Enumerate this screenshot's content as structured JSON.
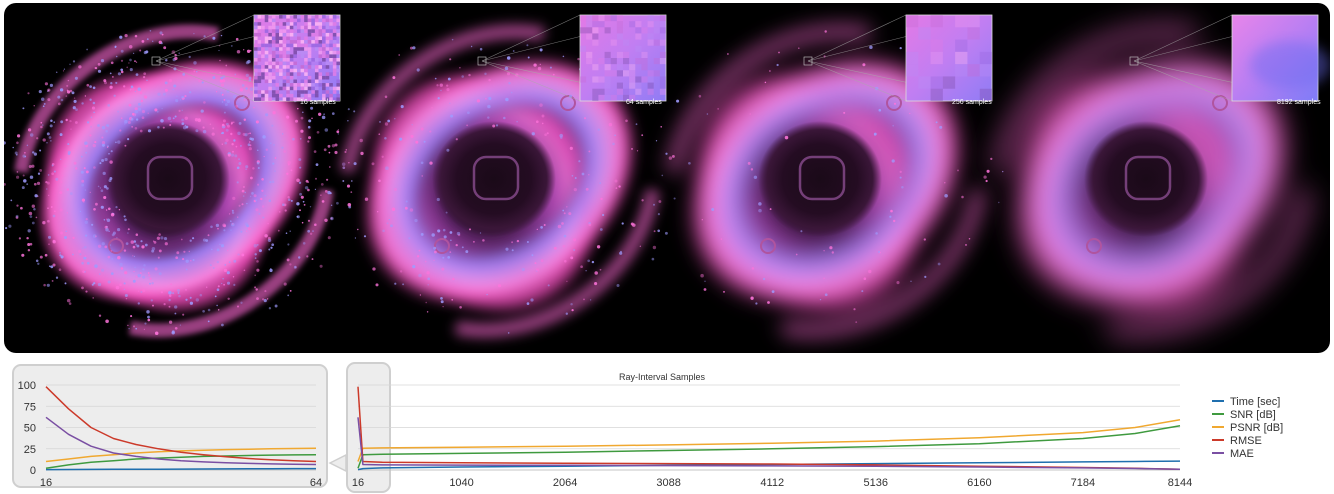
{
  "colors": {
    "time": "#1f6fae",
    "snr": "#3f9a3f",
    "psnr": "#f0a830",
    "rmse": "#cc3a2a",
    "mae": "#7a4fa3",
    "panel_bg": "#000000",
    "nebula_pink": "#ff5ad0",
    "nebula_blue": "#7f7cff"
  },
  "renders": [
    {
      "samples_label": "16 samples",
      "noise": "high"
    },
    {
      "samples_label": "64 samples",
      "noise": "medium"
    },
    {
      "samples_label": "256 samples",
      "noise": "low"
    },
    {
      "samples_label": "8192 samples",
      "noise": "none"
    }
  ],
  "chart_data": [
    {
      "type": "line",
      "title": "",
      "xlabel": "",
      "ylabel": "",
      "xlim": [
        16,
        64
      ],
      "ylim": [
        0,
        100
      ],
      "x_ticks": [
        16,
        64
      ],
      "y_ticks": [
        0,
        25,
        50,
        75,
        100
      ],
      "grid": true,
      "x": [
        16,
        20,
        24,
        28,
        32,
        36,
        40,
        44,
        48,
        52,
        56,
        60,
        64
      ],
      "series": [
        {
          "name": "Time [sec]",
          "color_key": "time",
          "values": [
            0.5,
            0.6,
            0.7,
            0.8,
            0.9,
            1.0,
            1.1,
            1.2,
            1.3,
            1.4,
            1.5,
            1.6,
            1.7
          ]
        },
        {
          "name": "SNR [dB]",
          "color_key": "snr",
          "values": [
            2,
            6,
            9,
            11,
            13,
            14,
            15,
            16,
            16.5,
            17,
            17.5,
            17.8,
            18
          ]
        },
        {
          "name": "PSNR [dB]",
          "color_key": "psnr",
          "values": [
            10,
            13,
            16,
            18,
            20,
            21.5,
            22.5,
            23.3,
            24,
            24.5,
            25,
            25.3,
            25.6
          ]
        },
        {
          "name": "RMSE",
          "color_key": "rmse",
          "values": [
            98,
            72,
            50,
            37,
            30,
            25,
            21,
            18,
            15.5,
            13.5,
            12,
            11,
            10
          ]
        },
        {
          "name": "MAE",
          "color_key": "mae",
          "values": [
            62,
            42,
            28,
            20,
            16,
            13,
            11,
            9.5,
            8.5,
            7.8,
            7.2,
            6.8,
            6.5
          ]
        }
      ]
    },
    {
      "type": "line",
      "title": "Ray-Interval Samples",
      "xlabel": "",
      "ylabel": "",
      "xlim": [
        16,
        8144
      ],
      "ylim": [
        0,
        100
      ],
      "x_ticks": [
        16,
        1040,
        2064,
        3088,
        4112,
        5136,
        6160,
        7184,
        8144
      ],
      "grid": true,
      "legend": "right",
      "x": [
        16,
        64,
        256,
        1040,
        2064,
        3088,
        4112,
        5136,
        6160,
        7184,
        7700,
        8144
      ],
      "series": [
        {
          "name": "Time [sec]",
          "color_key": "time",
          "values": [
            0.5,
            1.7,
            2.5,
            3.5,
            4.5,
            5.5,
            6.5,
            7.5,
            8.5,
            9.5,
            10,
            10.5
          ]
        },
        {
          "name": "SNR [dB]",
          "color_key": "snr",
          "values": [
            2,
            18,
            18.5,
            19.5,
            21,
            23,
            25,
            27.5,
            31,
            37,
            43,
            52
          ]
        },
        {
          "name": "PSNR [dB]",
          "color_key": "psnr",
          "values": [
            10,
            25.6,
            26,
            26.8,
            28,
            29.5,
            31.5,
            34,
            38,
            44,
            50,
            59
          ]
        },
        {
          "name": "RMSE",
          "color_key": "rmse",
          "values": [
            98,
            10,
            9,
            8.5,
            8,
            7.5,
            7,
            6,
            4.5,
            3,
            2,
            1
          ]
        },
        {
          "name": "MAE",
          "color_key": "mae",
          "values": [
            62,
            6.5,
            6,
            5.8,
            5.5,
            5.2,
            4.8,
            4.3,
            3.5,
            2.5,
            1.8,
            1
          ]
        }
      ]
    }
  ]
}
